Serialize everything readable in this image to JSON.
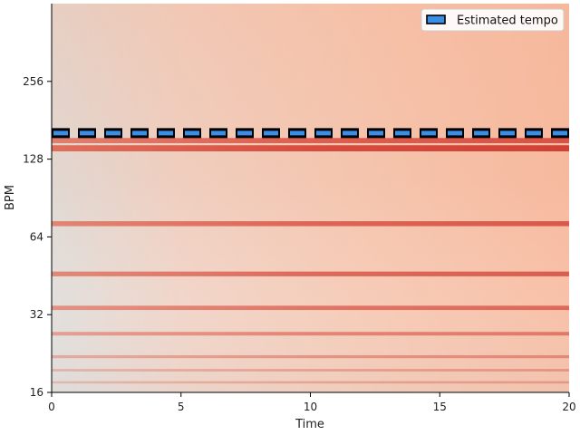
{
  "chart_data": {
    "type": "heatmap",
    "subtype": "tempogram",
    "colormap": "reds",
    "xlabel": "Time",
    "ylabel": "BPM",
    "xlim": [
      0,
      20.0
    ],
    "ylim": [
      16,
      512
    ],
    "yscale": "log2",
    "x_ticks": [
      0,
      5,
      10,
      15,
      20
    ],
    "y_ticks": [
      16,
      32,
      64,
      128,
      256
    ],
    "estimated_tempo_bpm": 161.5,
    "legend": {
      "label": "Estimated tempo",
      "placement": "top-right"
    },
    "tempo_bands": [
      {
        "bpm": 141,
        "strength": 0.95
      },
      {
        "bpm": 151,
        "strength": 0.75
      },
      {
        "bpm": 72,
        "strength": 0.7
      },
      {
        "bpm": 46,
        "strength": 0.65
      },
      {
        "bpm": 34,
        "strength": 0.55
      },
      {
        "bpm": 27,
        "strength": 0.4
      },
      {
        "bpm": 22,
        "strength": 0.25
      },
      {
        "bpm": 19.5,
        "strength": 0.15
      },
      {
        "bpm": 17.5,
        "strength": 0.1
      }
    ],
    "colors": {
      "heat_low": "#dcdcdc",
      "heat_mid": "#f4c4ac",
      "band": "#d94a3a",
      "band_dark": "#c8332d",
      "tempo_line_fill": "#3a8ee6",
      "tempo_line_edge": "#000000",
      "axis": "#000000"
    }
  }
}
